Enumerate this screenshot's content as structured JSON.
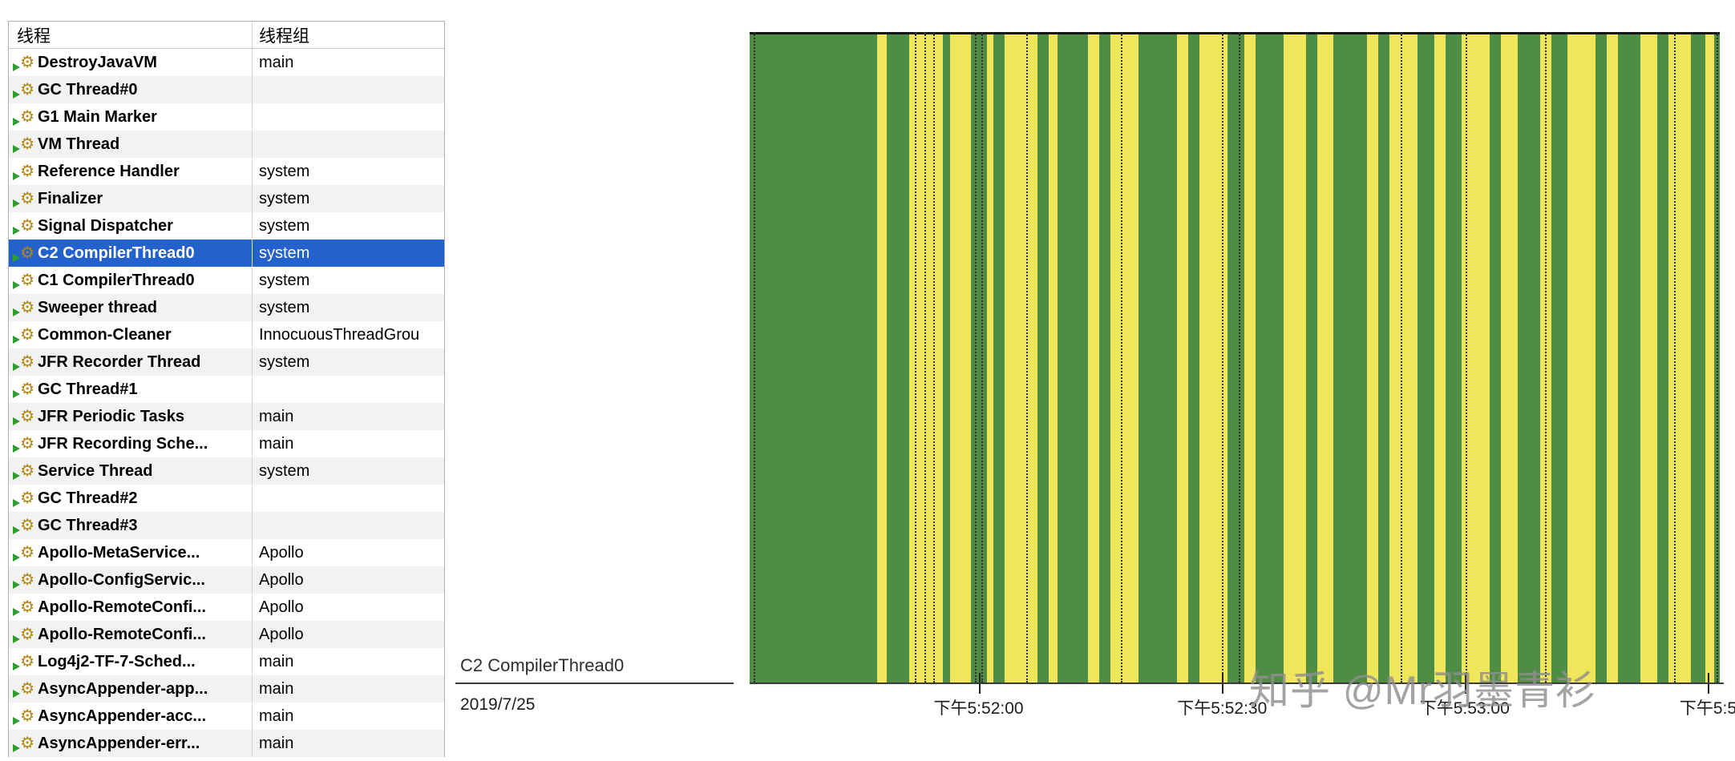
{
  "table": {
    "selection_color": "#2362cc",
    "columns": [
      {
        "label": "线程"
      },
      {
        "label": "线程组"
      }
    ],
    "rows": [
      {
        "name": "DestroyJavaVM",
        "group": "main",
        "selected": false
      },
      {
        "name": "GC Thread#0",
        "group": "",
        "selected": false
      },
      {
        "name": "G1 Main Marker",
        "group": "",
        "selected": false
      },
      {
        "name": "VM Thread",
        "group": "",
        "selected": false
      },
      {
        "name": "Reference Handler",
        "group": "system",
        "selected": false
      },
      {
        "name": "Finalizer",
        "group": "system",
        "selected": false
      },
      {
        "name": "Signal Dispatcher",
        "group": "system",
        "selected": false
      },
      {
        "name": "C2 CompilerThread0",
        "group": "system",
        "selected": true
      },
      {
        "name": "C1 CompilerThread0",
        "group": "system",
        "selected": false
      },
      {
        "name": "Sweeper thread",
        "group": "system",
        "selected": false
      },
      {
        "name": "Common-Cleaner",
        "group": "InnocuousThreadGrou",
        "selected": false
      },
      {
        "name": "JFR Recorder Thread",
        "group": "system",
        "selected": false
      },
      {
        "name": "GC Thread#1",
        "group": "",
        "selected": false
      },
      {
        "name": "JFR Periodic Tasks",
        "group": "main",
        "selected": false
      },
      {
        "name": "JFR Recording Sche...",
        "group": "main",
        "selected": false
      },
      {
        "name": "Service Thread",
        "group": "system",
        "selected": false
      },
      {
        "name": "GC Thread#2",
        "group": "",
        "selected": false
      },
      {
        "name": "GC Thread#3",
        "group": "",
        "selected": false
      },
      {
        "name": "Apollo-MetaService...",
        "group": "Apollo",
        "selected": false
      },
      {
        "name": "Apollo-ConfigServic...",
        "group": "Apollo",
        "selected": false
      },
      {
        "name": "Apollo-RemoteConfi...",
        "group": "Apollo",
        "selected": false
      },
      {
        "name": "Apollo-RemoteConfi...",
        "group": "Apollo",
        "selected": false
      },
      {
        "name": "Log4j2-TF-7-Sched...",
        "group": "main",
        "selected": false
      },
      {
        "name": "AsyncAppender-app...",
        "group": "main",
        "selected": false
      },
      {
        "name": "AsyncAppender-acc...",
        "group": "main",
        "selected": false
      },
      {
        "name": "AsyncAppender-err...",
        "group": "main",
        "selected": false
      }
    ]
  },
  "timeline": {
    "row_label": "C2 CompilerThread0",
    "date_label": "2019/7/25",
    "colors": {
      "running": "#4f8c44",
      "waiting": "#f0e65c"
    },
    "ticks": [
      {
        "label": "下午5:52:00",
        "pct": 23.6
      },
      {
        "label": "下午5:52:30",
        "pct": 48.7
      },
      {
        "label": "下午5:53:00",
        "pct": 73.7
      },
      {
        "label": "下午5:5",
        "pct": 98.8
      }
    ],
    "segments": [
      {
        "c": "g",
        "w": 13.1
      },
      {
        "c": "y",
        "w": 1.0
      },
      {
        "c": "g",
        "w": 2.3
      },
      {
        "c": "y",
        "w": 3.45
      },
      {
        "c": "g",
        "w": 0.8
      },
      {
        "c": "y",
        "w": 2.1
      },
      {
        "c": "g",
        "w": 1.7
      },
      {
        "c": "y",
        "w": 0.6
      },
      {
        "c": "g",
        "w": 1.15
      },
      {
        "c": "y",
        "w": 3.45
      },
      {
        "c": "g",
        "w": 1.15
      },
      {
        "c": "y",
        "w": 0.9
      },
      {
        "c": "g",
        "w": 3.1
      },
      {
        "c": "y",
        "w": 1.15
      },
      {
        "c": "g",
        "w": 1.15
      },
      {
        "c": "y",
        "w": 2.9
      },
      {
        "c": "g",
        "w": 4.0
      },
      {
        "c": "y",
        "w": 1.15
      },
      {
        "c": "g",
        "w": 1.15
      },
      {
        "c": "y",
        "w": 2.9
      },
      {
        "c": "g",
        "w": 1.7
      },
      {
        "c": "y",
        "w": 1.15
      },
      {
        "c": "g",
        "w": 2.9
      },
      {
        "c": "y",
        "w": 2.3
      },
      {
        "c": "g",
        "w": 1.15
      },
      {
        "c": "y",
        "w": 1.7
      },
      {
        "c": "g",
        "w": 3.45
      },
      {
        "c": "y",
        "w": 1.15
      },
      {
        "c": "g",
        "w": 1.15
      },
      {
        "c": "y",
        "w": 2.9
      },
      {
        "c": "g",
        "w": 1.7
      },
      {
        "c": "y",
        "w": 1.15
      },
      {
        "c": "g",
        "w": 1.7
      },
      {
        "c": "y",
        "w": 2.9
      },
      {
        "c": "g",
        "w": 1.15
      },
      {
        "c": "y",
        "w": 1.7
      },
      {
        "c": "g",
        "w": 2.3
      },
      {
        "c": "y",
        "w": 1.15
      },
      {
        "c": "g",
        "w": 1.7
      },
      {
        "c": "y",
        "w": 2.9
      },
      {
        "c": "g",
        "w": 1.15
      },
      {
        "c": "y",
        "w": 1.15
      },
      {
        "c": "g",
        "w": 2.3
      },
      {
        "c": "y",
        "w": 1.7
      },
      {
        "c": "g",
        "w": 1.15
      },
      {
        "c": "y",
        "w": 2.3
      },
      {
        "c": "g",
        "w": 1.5
      },
      {
        "c": "y",
        "w": 0.9
      },
      {
        "c": "g",
        "w": 0.6
      }
    ],
    "dotted_lines_pct": [
      0.4,
      17.0,
      18.0,
      18.9,
      23.2,
      23.9,
      28.5,
      38.3,
      48.7,
      50.4,
      67.1,
      73.8,
      82.0,
      95.3,
      99.7
    ]
  },
  "watermark": {
    "text": "知乎 @Mr羽墨青衫"
  }
}
